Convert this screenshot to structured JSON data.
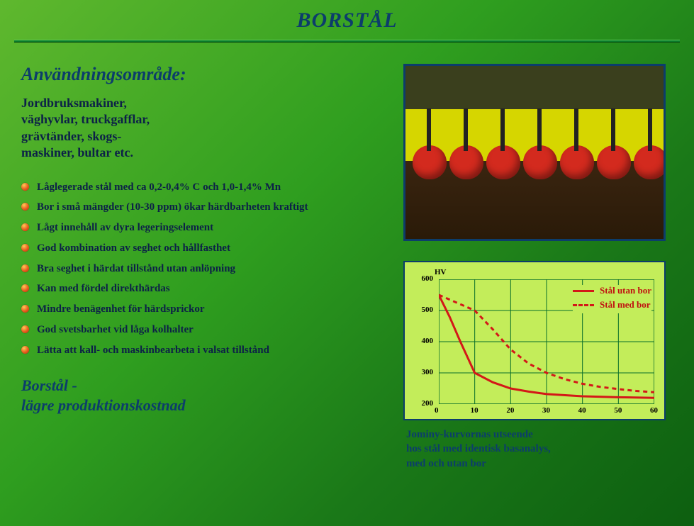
{
  "title": "BORSTÅL",
  "section_heading": "Användningsområde:",
  "intro_text": "Jordbruksmakiner,\nväghyvlar, truckgafflar,\ngrävtänder, skogs-\nmaskiner, bultar etc.",
  "bullets": [
    "Låglegerade stål med ca 0,2-0,4% C och 1,0-1,4% Mn",
    "Bor i små mängder (10-30 ppm) ökar härdbarheten kraftigt",
    "Lågt innehåll av dyra legeringselement",
    "God kombination av seghet och hållfasthet",
    "Bra seghet i härdat tillstånd utan anlöpning",
    "Kan med fördel direkthärdas",
    "Mindre benägenhet för härdsprickor",
    "God svetsbarhet vid låga kolhalter",
    "Lätta att kall- och maskinbearbeta i valsat tillstånd"
  ],
  "footer_heading": "Borstål -\nlägre produktionskostnad",
  "chart": {
    "type": "line",
    "yaxis_label": "HV",
    "xlim": [
      0,
      60
    ],
    "ylim": [
      200,
      600
    ],
    "xticks": [
      0,
      10,
      20,
      30,
      40,
      50,
      60
    ],
    "yticks": [
      200,
      300,
      400,
      500,
      600
    ],
    "background_color": "#c3ed5a",
    "grid_color": "#0a6e2a",
    "border_color": "#0c3d6b",
    "series": [
      {
        "label": "Stål utan bor",
        "color": "#d31818",
        "dash": "solid",
        "width": 3,
        "points": [
          [
            0,
            550
          ],
          [
            3,
            480
          ],
          [
            6,
            400
          ],
          [
            8,
            350
          ],
          [
            10,
            300
          ],
          [
            15,
            270
          ],
          [
            20,
            250
          ],
          [
            25,
            240
          ],
          [
            30,
            232
          ],
          [
            40,
            225
          ],
          [
            50,
            222
          ],
          [
            60,
            220
          ]
        ]
      },
      {
        "label": "Stål med bor",
        "color": "#d31818",
        "dash": "dashed",
        "width": 3,
        "points": [
          [
            0,
            550
          ],
          [
            5,
            525
          ],
          [
            10,
            500
          ],
          [
            15,
            440
          ],
          [
            20,
            375
          ],
          [
            25,
            330
          ],
          [
            30,
            300
          ],
          [
            35,
            280
          ],
          [
            40,
            265
          ],
          [
            45,
            255
          ],
          [
            50,
            248
          ],
          [
            55,
            242
          ],
          [
            60,
            238
          ]
        ]
      }
    ]
  },
  "chart_caption": "Jominy-kurvornas utseende\nhos stål med identisk basanalys,\nmed och utan bor",
  "colors": {
    "heading": "#0c3d6b",
    "body": "#0c2147",
    "bullet_fill": "#e85a1f"
  },
  "photo": {
    "description": "agricultural-machinery",
    "disc_color": "#d32a1e",
    "field_color": "#d6d600",
    "soil_color": "#2a1a08"
  }
}
